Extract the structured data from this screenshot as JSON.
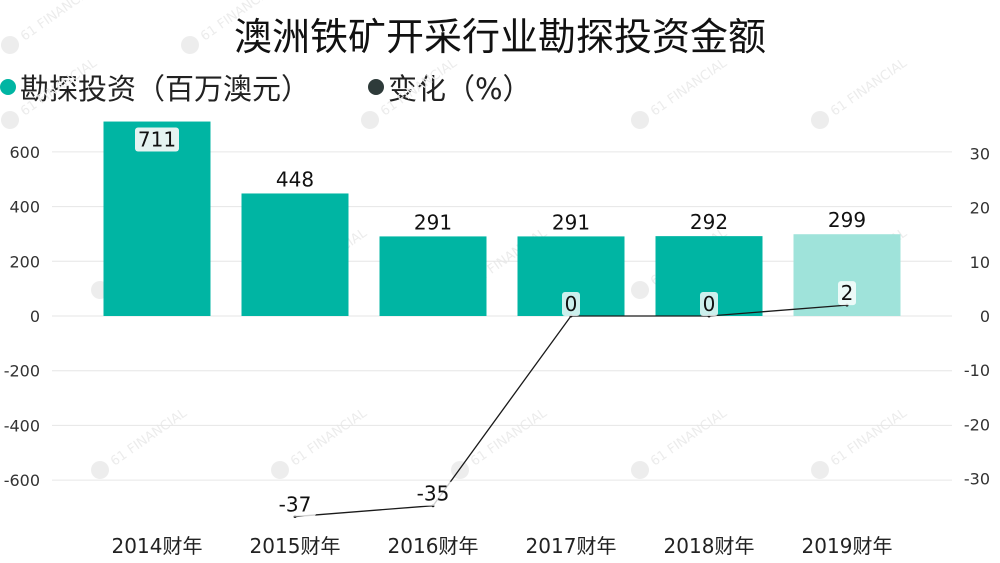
{
  "title": "澳洲铁矿开采行业勘探投资金额",
  "colors": {
    "bar": "#00B5A3",
    "bar_light": "#9FE3DA",
    "line": "#1a1a1a",
    "line_legend": "#2E3B3A",
    "grid": "#E6E6E6",
    "label_box": "#E5F3F1",
    "tick": "#333333"
  },
  "legend": {
    "bars_label": "勘探投资（百万澳元）",
    "line_label": "变化（%）"
  },
  "watermark": "61 FINANCIAL",
  "chart_data": {
    "type": "bar",
    "title": "澳洲铁矿开采行业勘探投资金额",
    "categories": [
      "2014财年",
      "2015财年",
      "2016财年",
      "2017财年",
      "2018财年",
      "2019财年"
    ],
    "series": [
      {
        "name": "勘探投资（百万澳元）",
        "type": "bar",
        "axis": "left",
        "values": [
          711,
          448,
          291,
          291,
          292,
          299
        ],
        "labels": [
          "711",
          "448",
          "291",
          "291",
          "292",
          "299"
        ]
      },
      {
        "name": "变化（%）",
        "type": "line",
        "axis": "right",
        "values": [
          null,
          -37,
          -35,
          0,
          0,
          2
        ],
        "labels": [
          "",
          "-37",
          "-35",
          "0",
          "0",
          "2"
        ]
      }
    ],
    "y_left": {
      "ticks": [
        600,
        400,
        200,
        0,
        -200,
        -400,
        -600
      ],
      "tick_labels": [
        "600",
        "400",
        "200",
        "0",
        "-200",
        "-400",
        "-600"
      ],
      "range": [
        -700,
        750
      ]
    },
    "y_right": {
      "ticks": [
        30,
        20,
        10,
        0,
        -10,
        -20,
        -30
      ],
      "tick_labels": [
        "30",
        "20",
        "10",
        "0",
        "-10",
        "-20",
        "-30"
      ],
      "range": [
        -37.9,
        40.8
      ]
    },
    "grid": true,
    "legend_position": "top-left"
  }
}
